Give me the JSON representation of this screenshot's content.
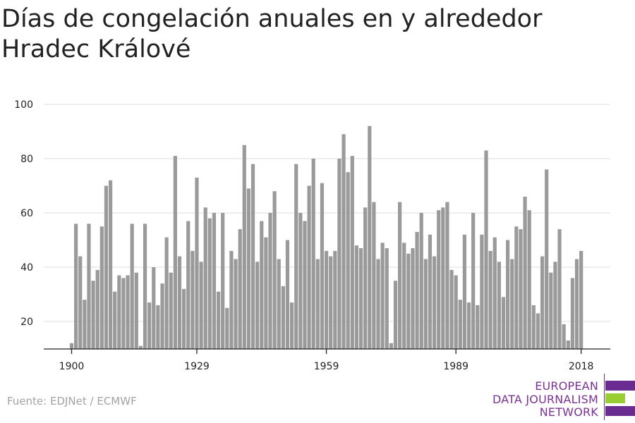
{
  "title": "Días de congelación anuales en y alrededor Hradec Králové",
  "source": "Fuente: EDJNet / ECMWF",
  "logo": {
    "line1": "EUROPEAN",
    "line2": "DATA JOURNALISM",
    "line3": "NETWORK",
    "text_color": "#7b3294",
    "purple": "#6b2c91",
    "green": "#9acd32"
  },
  "colors": {
    "bar": "#9a9a9a",
    "grid": "#dddddd",
    "axis": "#222222",
    "tick_label": "#222222"
  },
  "chart_data": {
    "type": "bar",
    "title": "Días de congelación anuales en y alrededor Hradec Králové",
    "xlabel": "",
    "ylabel": "",
    "ylim": [
      9,
      100
    ],
    "yticks": [
      20,
      40,
      60,
      80,
      100
    ],
    "xticks": [
      1900,
      1929,
      1959,
      1989,
      2018
    ],
    "grid": "horizontal",
    "years": [
      1900,
      2018
    ],
    "values": [
      12,
      56,
      44,
      28,
      56,
      35,
      39,
      55,
      70,
      72,
      31,
      37,
      36,
      37,
      56,
      38,
      11,
      56,
      27,
      40,
      26,
      34,
      51,
      38,
      81,
      44,
      32,
      57,
      46,
      73,
      42,
      62,
      58,
      60,
      31,
      60,
      25,
      46,
      43,
      54,
      85,
      69,
      78,
      42,
      57,
      51,
      60,
      68,
      43,
      33,
      50,
      27,
      78,
      60,
      57,
      70,
      80,
      43,
      71,
      46,
      44,
      46,
      80,
      89,
      75,
      81,
      48,
      47,
      62,
      92,
      64,
      43,
      49,
      47,
      12,
      35,
      64,
      49,
      45,
      47,
      53,
      60,
      43,
      52,
      44,
      61,
      62,
      64,
      39,
      37,
      28,
      52,
      27,
      60,
      26,
      52,
      83,
      46,
      51,
      42,
      29,
      50,
      43,
      55,
      54,
      66,
      61,
      26,
      23,
      44,
      76,
      38,
      42,
      54,
      19,
      13,
      36,
      43,
      46
    ]
  }
}
